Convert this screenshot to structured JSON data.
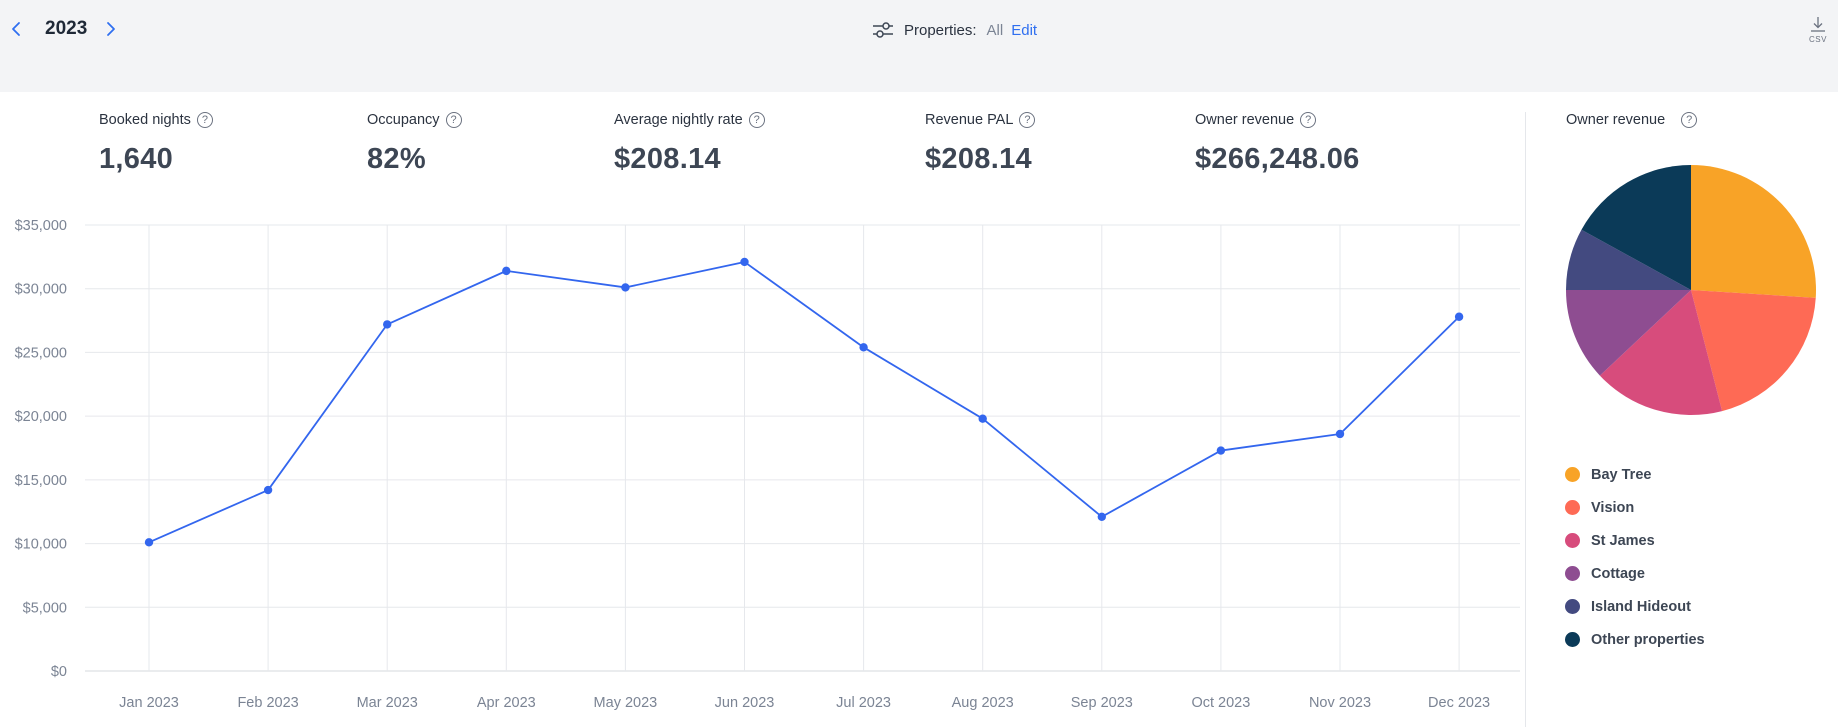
{
  "header": {
    "year": "2023",
    "properties_label": "Properties:",
    "properties_value": "All",
    "edit_label": "Edit",
    "csv_label": "CSV"
  },
  "kpis": [
    {
      "label": "Booked nights",
      "value": "1,640",
      "active": false
    },
    {
      "label": "Occupancy",
      "value": "82%",
      "active": false
    },
    {
      "label": "Average nightly rate",
      "value": "$208.14",
      "active": false
    },
    {
      "label": "Revenue PAL",
      "value": "$208.14",
      "active": false
    },
    {
      "label": "Owner revenue",
      "value": "$266,248.06",
      "active": true
    }
  ],
  "help_glyph": "?",
  "colors": {
    "accent": "#2f6ff0",
    "line": "#3366ee",
    "grid": "#e6e8ec"
  },
  "chart_data": [
    {
      "type": "line",
      "categories": [
        "Jan 2023",
        "Feb 2023",
        "Mar 2023",
        "Apr 2023",
        "May 2023",
        "Jun 2023",
        "Jul 2023",
        "Aug 2023",
        "Sep 2023",
        "Oct 2023",
        "Nov 2023",
        "Dec 2023"
      ],
      "series": [
        {
          "values": [
            10100,
            14200,
            27200,
            31400,
            30100,
            32100,
            25400,
            19800,
            12100,
            17300,
            18600,
            27800
          ],
          "color": "#3366ee"
        }
      ],
      "yticks": [
        0,
        5000,
        10000,
        15000,
        20000,
        25000,
        30000,
        35000
      ],
      "ytick_labels": [
        "$0",
        "$5,000",
        "$10,000",
        "$15,000",
        "$20,000",
        "$25,000",
        "$30,000",
        "$35,000"
      ],
      "ylim": [
        0,
        35000
      ],
      "grid": true,
      "title": "",
      "xlabel": "",
      "ylabel": ""
    },
    {
      "type": "pie",
      "title": "Owner revenue",
      "labels": [
        "Bay Tree",
        "Vision",
        "St James",
        "Cottage",
        "Island Hideout",
        "Other properties"
      ],
      "values": [
        26,
        20,
        17,
        12,
        8,
        17
      ],
      "colors": [
        "#f8a327",
        "#fe6a55",
        "#d74c7c",
        "#8e4d91",
        "#434a80",
        "#0b3a58"
      ],
      "legend": "bottom"
    }
  ]
}
